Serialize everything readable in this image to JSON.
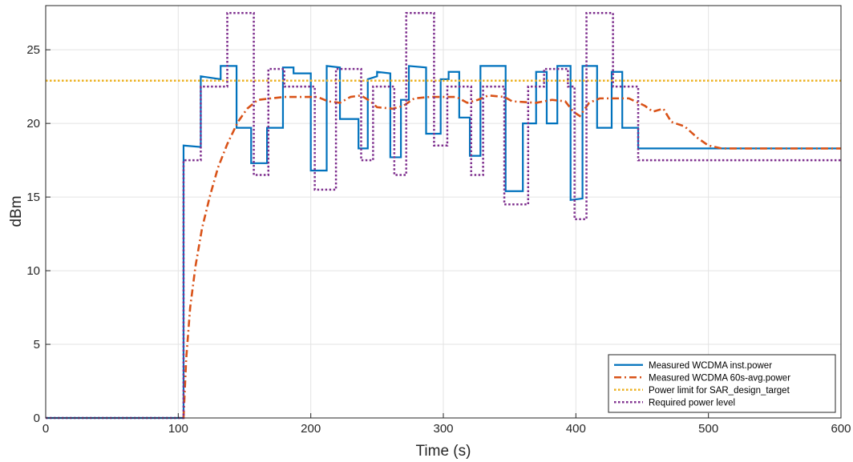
{
  "chart_data": {
    "type": "line",
    "xlabel": "Time (s)",
    "ylabel": "dBm",
    "xlim": [
      0,
      600
    ],
    "ylim": [
      0,
      28
    ],
    "xticks": [
      0,
      100,
      200,
      300,
      400,
      500,
      600
    ],
    "yticks": [
      0,
      5,
      10,
      15,
      20,
      25
    ],
    "grid": true,
    "legend_position": "bottom-right",
    "series": [
      {
        "name": "Measured WCDMA inst.power",
        "color": "#0072BD",
        "style": "solid",
        "points": [
          [
            0,
            0
          ],
          [
            104,
            0
          ],
          [
            104,
            18.5
          ],
          [
            117,
            18.4
          ],
          [
            117,
            23.2
          ],
          [
            132,
            23.0
          ],
          [
            132,
            23.9
          ],
          [
            144,
            23.9
          ],
          [
            144,
            19.7
          ],
          [
            155,
            19.7
          ],
          [
            155,
            17.3
          ],
          [
            167,
            17.3
          ],
          [
            167,
            19.7
          ],
          [
            179,
            19.7
          ],
          [
            179,
            23.8
          ],
          [
            187,
            23.8
          ],
          [
            187,
            23.4
          ],
          [
            200,
            23.4
          ],
          [
            200,
            16.8
          ],
          [
            212,
            16.8
          ],
          [
            212,
            23.9
          ],
          [
            222,
            23.8
          ],
          [
            222,
            20.3
          ],
          [
            236,
            20.3
          ],
          [
            236,
            18.3
          ],
          [
            243,
            18.3
          ],
          [
            243,
            23.0
          ],
          [
            250,
            23.2
          ],
          [
            250,
            23.5
          ],
          [
            260,
            23.4
          ],
          [
            260,
            17.7
          ],
          [
            268,
            17.7
          ],
          [
            268,
            21.6
          ],
          [
            274,
            21.6
          ],
          [
            274,
            23.9
          ],
          [
            287,
            23.8
          ],
          [
            287,
            19.3
          ],
          [
            298,
            19.3
          ],
          [
            298,
            23.0
          ],
          [
            304,
            23.0
          ],
          [
            304,
            23.5
          ],
          [
            312,
            23.5
          ],
          [
            312,
            20.4
          ],
          [
            320,
            20.4
          ],
          [
            320,
            17.8
          ],
          [
            328,
            17.8
          ],
          [
            328,
            23.9
          ],
          [
            347,
            23.9
          ],
          [
            347,
            15.4
          ],
          [
            360,
            15.4
          ],
          [
            360,
            20.0
          ],
          [
            370,
            20.0
          ],
          [
            370,
            23.5
          ],
          [
            378,
            23.5
          ],
          [
            378,
            20.0
          ],
          [
            386,
            20.0
          ],
          [
            386,
            23.9
          ],
          [
            396,
            23.9
          ],
          [
            396,
            14.8
          ],
          [
            405,
            14.9
          ],
          [
            405,
            23.9
          ],
          [
            416,
            23.9
          ],
          [
            416,
            19.7
          ],
          [
            427,
            19.7
          ],
          [
            427,
            23.5
          ],
          [
            435,
            23.5
          ],
          [
            435,
            19.7
          ],
          [
            447,
            19.7
          ],
          [
            447,
            18.3
          ],
          [
            470,
            18.3
          ],
          [
            500,
            18.3
          ],
          [
            600,
            18.3
          ]
        ]
      },
      {
        "name": "Measured WCDMA 60s-avg.power",
        "color": "#D95319",
        "style": "dashdot",
        "points": [
          [
            104,
            0
          ],
          [
            106,
            4
          ],
          [
            109,
            7.5
          ],
          [
            113,
            10.3
          ],
          [
            118,
            12.9
          ],
          [
            124,
            15.1
          ],
          [
            130,
            17.0
          ],
          [
            137,
            18.6
          ],
          [
            145,
            20.1
          ],
          [
            152,
            21.0
          ],
          [
            160,
            21.6
          ],
          [
            170,
            21.7
          ],
          [
            180,
            21.8
          ],
          [
            195,
            21.8
          ],
          [
            205,
            21.8
          ],
          [
            213,
            21.5
          ],
          [
            222,
            21.4
          ],
          [
            230,
            21.8
          ],
          [
            238,
            21.9
          ],
          [
            245,
            21.5
          ],
          [
            250,
            21.1
          ],
          [
            262,
            21.0
          ],
          [
            270,
            21.2
          ],
          [
            278,
            21.7
          ],
          [
            290,
            21.8
          ],
          [
            300,
            21.8
          ],
          [
            310,
            21.8
          ],
          [
            318,
            21.4
          ],
          [
            326,
            21.6
          ],
          [
            334,
            21.9
          ],
          [
            346,
            21.8
          ],
          [
            352,
            21.5
          ],
          [
            370,
            21.4
          ],
          [
            382,
            21.6
          ],
          [
            392,
            21.5
          ],
          [
            398,
            20.8
          ],
          [
            403,
            20.5
          ],
          [
            410,
            21.4
          ],
          [
            418,
            21.7
          ],
          [
            440,
            21.7
          ],
          [
            452,
            21.2
          ],
          [
            458,
            20.8
          ],
          [
            466,
            21.0
          ],
          [
            472,
            20.1
          ],
          [
            482,
            19.8
          ],
          [
            492,
            19.0
          ],
          [
            500,
            18.5
          ],
          [
            510,
            18.3
          ],
          [
            600,
            18.3
          ]
        ]
      },
      {
        "name": "Power limit for SAR_design_target",
        "color": "#EDB120",
        "style": "dotted",
        "points": [
          [
            0,
            22.9
          ],
          [
            600,
            22.9
          ]
        ]
      },
      {
        "name": "Required power level",
        "color": "#7E2F8E",
        "style": "dotted",
        "points": [
          [
            0,
            0
          ],
          [
            104,
            0
          ],
          [
            104,
            17.5
          ],
          [
            117,
            17.5
          ],
          [
            117,
            22.5
          ],
          [
            137,
            22.5
          ],
          [
            137,
            27.5
          ],
          [
            157,
            27.5
          ],
          [
            157,
            16.5
          ],
          [
            168,
            16.5
          ],
          [
            168,
            23.7
          ],
          [
            180,
            23.7
          ],
          [
            180,
            22.5
          ],
          [
            203,
            22.5
          ],
          [
            203,
            15.5
          ],
          [
            219,
            15.5
          ],
          [
            219,
            23.7
          ],
          [
            238,
            23.7
          ],
          [
            238,
            17.5
          ],
          [
            247,
            17.5
          ],
          [
            247,
            22.5
          ],
          [
            263,
            22.5
          ],
          [
            263,
            16.5
          ],
          [
            272,
            16.5
          ],
          [
            272,
            27.5
          ],
          [
            293,
            27.5
          ],
          [
            293,
            18.5
          ],
          [
            303,
            18.5
          ],
          [
            303,
            22.5
          ],
          [
            321,
            22.5
          ],
          [
            321,
            16.5
          ],
          [
            330,
            16.5
          ],
          [
            330,
            22.5
          ],
          [
            346,
            22.5
          ],
          [
            346,
            14.5
          ],
          [
            364,
            14.5
          ],
          [
            364,
            22.5
          ],
          [
            376,
            22.5
          ],
          [
            376,
            23.7
          ],
          [
            394,
            23.7
          ],
          [
            394,
            22.5
          ],
          [
            399,
            22.5
          ],
          [
            399,
            13.5
          ],
          [
            408,
            13.5
          ],
          [
            408,
            27.5
          ],
          [
            428,
            27.5
          ],
          [
            428,
            22.5
          ],
          [
            447,
            22.5
          ],
          [
            447,
            17.5
          ],
          [
            600,
            17.5
          ]
        ]
      }
    ]
  }
}
